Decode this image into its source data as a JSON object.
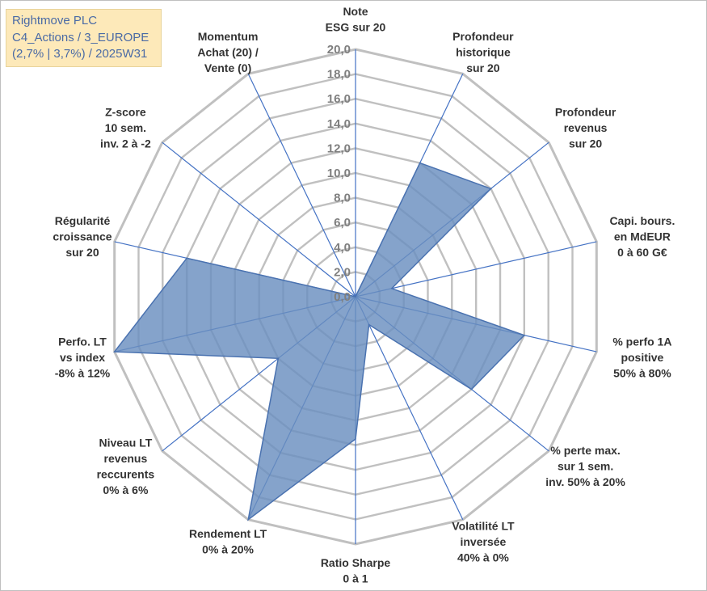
{
  "title": {
    "line1": "Rightmove PLC",
    "line2": "C4_Actions / 3_EUROPE",
    "line3": "(2,7% | 3,7%) / 2025W31"
  },
  "chart_data": {
    "type": "radar",
    "rmax": 20,
    "ticks": [
      "0,0",
      "2,0",
      "4,0",
      "6,0",
      "8,0",
      "10,0",
      "12,0",
      "14,0",
      "16,0",
      "18,0",
      "20,0"
    ],
    "axes": [
      {
        "label": [
          "Note",
          "ESG sur 20"
        ],
        "value": 0
      },
      {
        "label": [
          "Profondeur",
          "historique",
          "sur 20"
        ],
        "value": 12
      },
      {
        "label": [
          "Profondeur",
          "revenus",
          "sur 20"
        ],
        "value": 14
      },
      {
        "label": [
          "Capi. bours.",
          "en MdEUR",
          "0 à 60 G€"
        ],
        "value": 3
      },
      {
        "label": [
          "% perfo 1A",
          "positive",
          "50% à 80%"
        ],
        "value": 14
      },
      {
        "label": [
          "% perte max.",
          "sur 1 sem.",
          "inv. 50% à 20%"
        ],
        "value": 12
      },
      {
        "label": [
          "Volatilité LT",
          "inversée",
          "40% à 0%"
        ],
        "value": 2.5
      },
      {
        "label": [
          "Ratio Sharpe",
          "0 à 1"
        ],
        "value": 11.5
      },
      {
        "label": [
          "Rendement LT",
          "0% à 20%"
        ],
        "value": 20
      },
      {
        "label": [
          "Niveau LT",
          "revenus",
          "reccurents",
          "0% à 6%"
        ],
        "value": 8
      },
      {
        "label": [
          "Perfo. LT",
          "vs index",
          "-8% à 12%"
        ],
        "value": 20
      },
      {
        "label": [
          "Régularité",
          "croissance",
          "sur 20"
        ],
        "value": 14
      },
      {
        "label": [
          "Z-score",
          "10 sem.",
          "inv. 2 à -2"
        ],
        "value": 0
      },
      {
        "label": [
          "Momentum",
          "Achat (20) /",
          "Vente (0)"
        ],
        "value": 0
      }
    ],
    "colors": {
      "grid": "#c0c0c0",
      "spoke": "#4472c4",
      "fill": "#6a8fc0",
      "stroke": "#4a72b0",
      "title_bg": "#fde9b9",
      "title_text": "#4a6aa5"
    }
  }
}
